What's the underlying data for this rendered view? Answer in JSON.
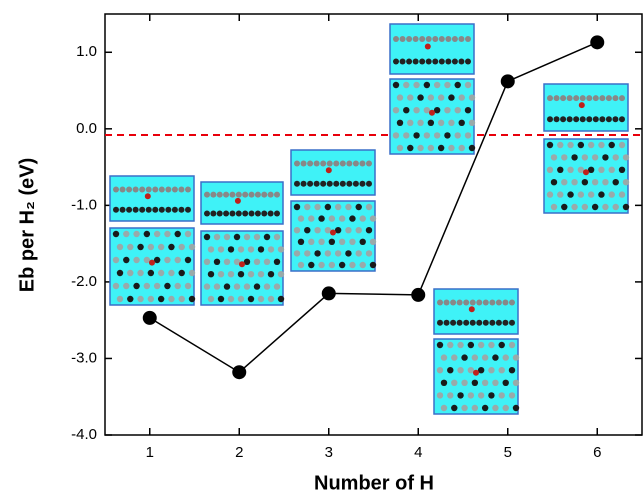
{
  "chart_data": {
    "type": "line",
    "x_label": "Number of H",
    "y_label": "Eb per H₂ (eV)",
    "x": [
      1,
      2,
      3,
      4,
      5,
      6
    ],
    "series": [
      {
        "color": "#000000",
        "values": [
          -2.47,
          -3.18,
          -2.15,
          -2.17,
          0.62,
          1.13
        ]
      }
    ],
    "xlim": [
      0.5,
      6.5
    ],
    "ylim": [
      -4.0,
      1.5
    ],
    "xticks": [
      1,
      2,
      3,
      4,
      5,
      6
    ],
    "yticks": [
      {
        "value": -4.0,
        "label": "-4.0"
      },
      {
        "value": -3.0,
        "label": "-3.0"
      },
      {
        "value": -2.0,
        "label": "-2.0"
      },
      {
        "value": -1.0,
        "label": "-1.0"
      },
      {
        "value": 0.0,
        "label": "0.0"
      },
      {
        "value": 1.0,
        "label": "1.0"
      }
    ],
    "reference_line": {
      "value": -0.08,
      "color": "#e8000b"
    }
  }
}
